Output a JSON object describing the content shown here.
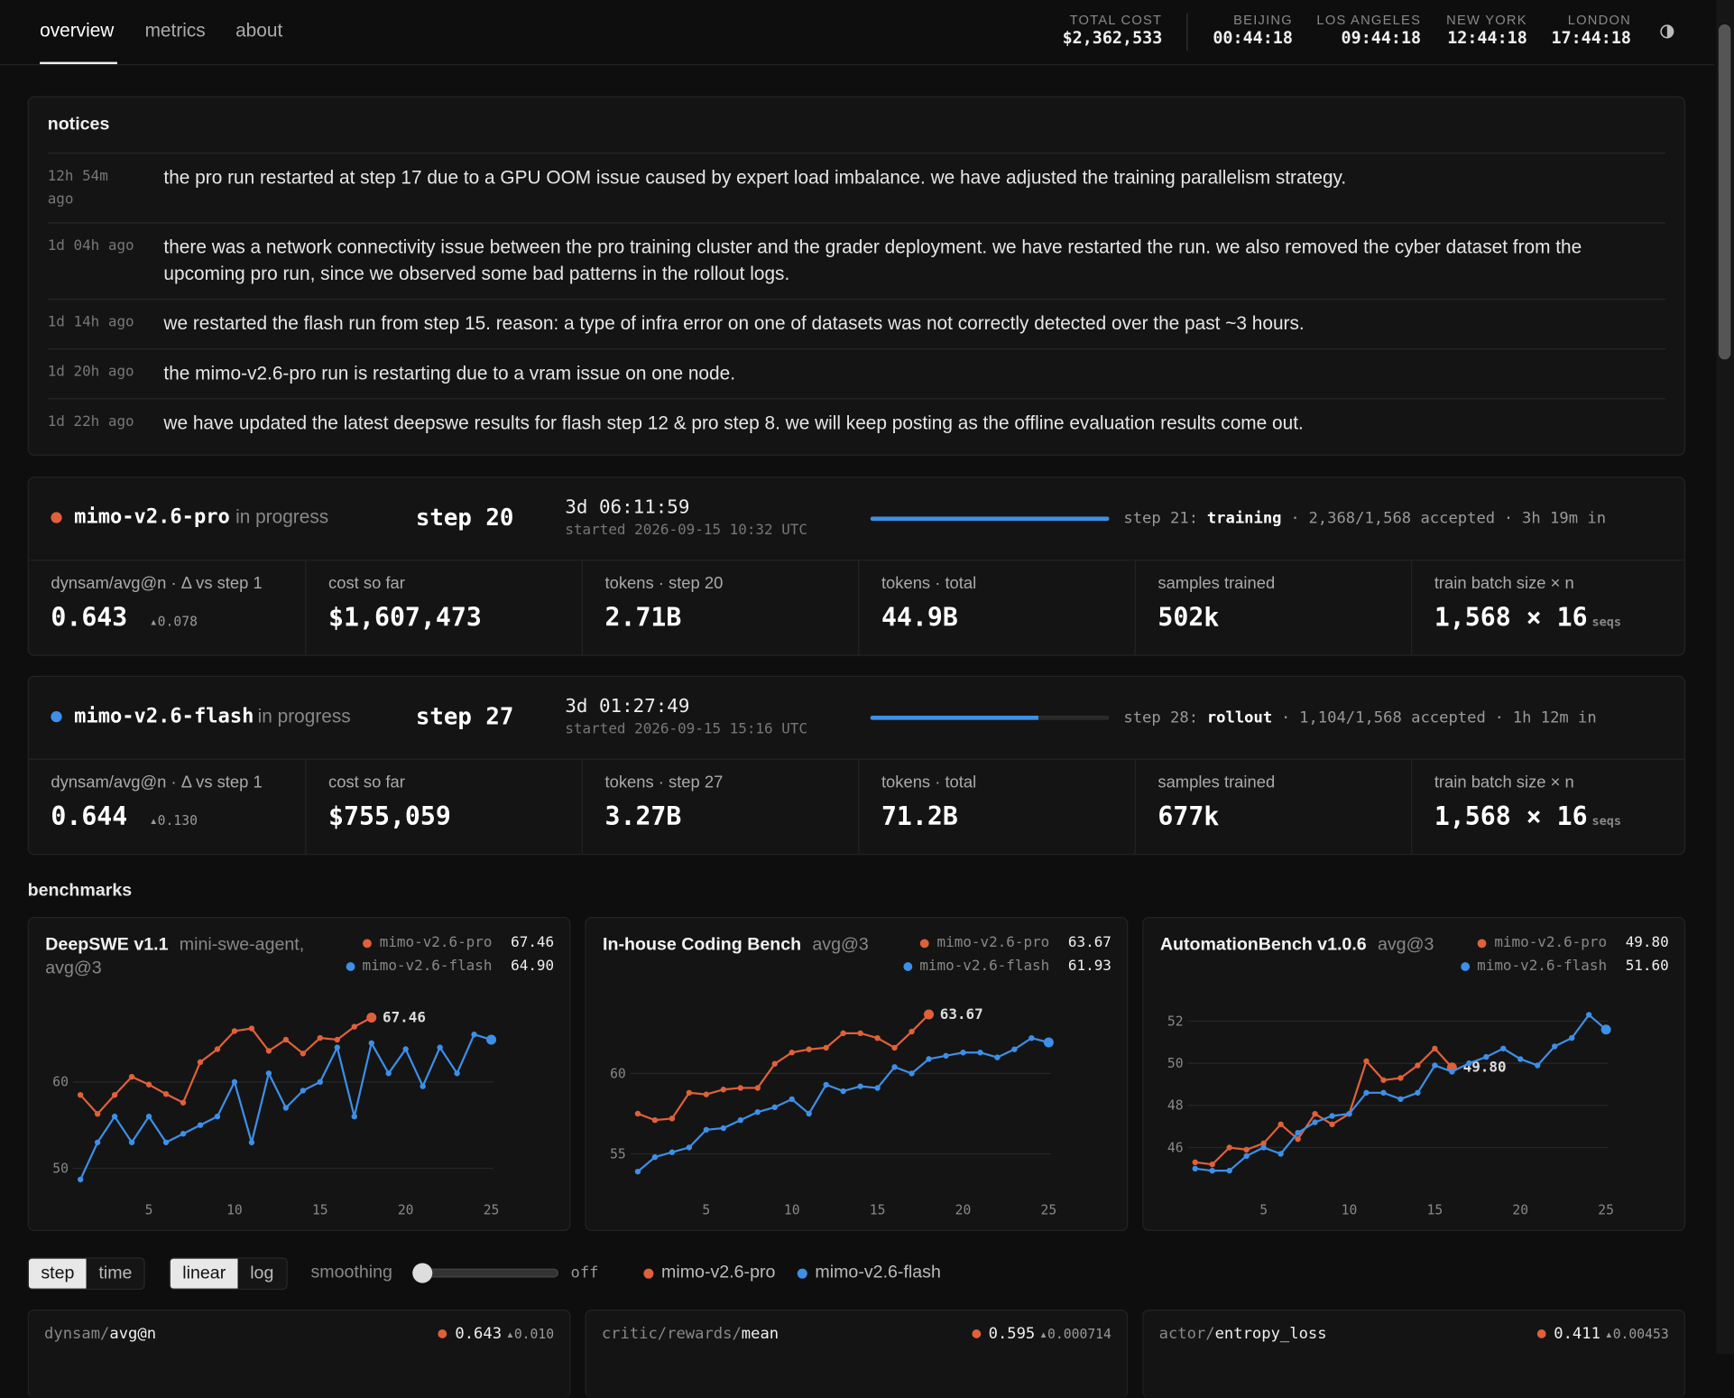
{
  "nav": {
    "tabs": [
      "overview",
      "metrics",
      "about"
    ]
  },
  "header": {
    "stats": [
      {
        "label": "TOTAL COST",
        "value": "$2,362,533"
      },
      {
        "label": "BEIJING",
        "value": "00:44:18"
      },
      {
        "label": "LOS ANGELES",
        "value": "09:44:18"
      },
      {
        "label": "NEW YORK",
        "value": "12:44:18"
      },
      {
        "label": "LONDON",
        "value": "17:44:18"
      }
    ]
  },
  "notices": {
    "title": "notices",
    "items": [
      {
        "time": "12h 54m ago",
        "text": "the pro run restarted at step 17 due to a GPU OOM issue caused by expert load imbalance. we have adjusted the training parallelism strategy."
      },
      {
        "time": "1d 04h ago",
        "text": "there was a network connectivity issue between the pro training cluster and the grader deployment. we have restarted the run. we also removed the cyber dataset from the upcoming pro run, since we observed some bad patterns in the rollout logs."
      },
      {
        "time": "1d 14h ago",
        "text": "we restarted the flash run from step 15. reason: a type of infra error on one of datasets was not correctly detected over the past ~3 hours."
      },
      {
        "time": "1d 20h ago",
        "text": "the mimo-v2.6-pro run is restarting due to a vram issue on one node."
      },
      {
        "time": "1d 22h ago",
        "text": "we have updated the latest deepswe results for flash step 12 & pro step 8. we will keep posting as the offline evaluation results come out."
      }
    ]
  },
  "runs": [
    {
      "name": "mimo-v2.6-pro",
      "color": "#e0603a",
      "status": "in progress",
      "step": "step 20",
      "elapsed": "3d 06:11:59",
      "started": "started 2026-09-15 10:32 UTC",
      "progress": {
        "next": "step 21:",
        "phase": "training",
        "accepted": 2368,
        "target": 1568,
        "accepted_label": "2,368/1,568 accepted",
        "elapsed": "3h 19m in"
      },
      "stats": [
        {
          "label": "dynsam/avg@n · Δ vs step 1",
          "value": "0.643",
          "delta": "▴0.078"
        },
        {
          "label": "cost so far",
          "value": "$1,607,473"
        },
        {
          "label": "tokens · step 20",
          "value": "2.71B"
        },
        {
          "label": "tokens · total",
          "value": "44.9B"
        },
        {
          "label": "samples trained",
          "value": "502k"
        },
        {
          "label": "train batch size × n",
          "value": "1,568 × 16",
          "unit": "seqs"
        }
      ]
    },
    {
      "name": "mimo-v2.6-flash",
      "color": "#3d8fe8",
      "status": "in progress",
      "step": "step 27",
      "elapsed": "3d 01:27:49",
      "started": "started 2026-09-15 15:16 UTC",
      "progress": {
        "next": "step 28:",
        "phase": "rollout",
        "accepted": 1104,
        "target": 1568,
        "accepted_label": "1,104/1,568 accepted",
        "elapsed": "1h 12m in"
      },
      "stats": [
        {
          "label": "dynsam/avg@n · Δ vs step 1",
          "value": "0.644",
          "delta": "▴0.130"
        },
        {
          "label": "cost so far",
          "value": "$755,059"
        },
        {
          "label": "tokens · step 27",
          "value": "3.27B"
        },
        {
          "label": "tokens · total",
          "value": "71.2B"
        },
        {
          "label": "samples trained",
          "value": "677k"
        },
        {
          "label": "train batch size × n",
          "value": "1,568 × 16",
          "unit": "seqs"
        }
      ]
    }
  ],
  "benchmarks": {
    "title": "benchmarks",
    "charts": [
      {
        "type": "line",
        "title": "DeepSWE v1.1",
        "subtitle": "mini-swe-agent, avg@3",
        "xlim": [
          0.5,
          25.5
        ],
        "ylim": [
          48.5,
          69
        ],
        "xticks": [
          5,
          10,
          15,
          20,
          25
        ],
        "yticks": [
          50,
          60
        ],
        "x": [
          1,
          2,
          3,
          4,
          5,
          6,
          7,
          8,
          9,
          10,
          11,
          12,
          13,
          14,
          15,
          16,
          17,
          18,
          19,
          20,
          21,
          22,
          23,
          24,
          25
        ],
        "series": [
          {
            "name": "mimo-v2.6-pro",
            "color": "#e0603a",
            "latest_label": "67.46",
            "values": [
              58.5,
              56.3,
              58.5,
              60.6,
              59.7,
              58.6,
              57.6,
              62.3,
              63.8,
              65.9,
              66.2,
              63.6,
              64.9,
              63.3,
              65.1,
              64.9,
              66.4,
              67.46,
              null,
              null,
              null,
              null,
              null,
              null,
              null
            ]
          },
          {
            "name": "mimo-v2.6-flash",
            "color": "#3d8fe8",
            "latest_label": "64.90",
            "values": [
              48.7,
              53,
              56,
              53,
              56,
              53,
              54,
              55,
              56,
              60,
              53,
              61,
              57,
              59,
              60,
              64,
              56,
              64.5,
              61,
              63.8,
              59.5,
              64,
              61,
              65.5,
              64.9
            ]
          }
        ]
      },
      {
        "type": "line",
        "title": "In-house Coding Bench",
        "subtitle": "avg@3",
        "xlim": [
          0.5,
          25.5
        ],
        "ylim": [
          53.3,
          64.3
        ],
        "xticks": [
          5,
          10,
          15,
          20,
          25
        ],
        "yticks": [
          55,
          60
        ],
        "x": [
          1,
          2,
          3,
          4,
          5,
          6,
          7,
          8,
          9,
          10,
          11,
          12,
          13,
          14,
          15,
          16,
          17,
          18,
          19,
          20,
          21,
          22,
          23,
          24,
          25
        ],
        "series": [
          {
            "name": "mimo-v2.6-pro",
            "color": "#e0603a",
            "latest_label": "63.67",
            "values": [
              57.5,
              57.1,
              57.2,
              58.8,
              58.7,
              59,
              59.1,
              59.1,
              60.6,
              61.3,
              61.5,
              61.6,
              62.5,
              62.5,
              62.2,
              61.6,
              62.6,
              63.67,
              null,
              null,
              null,
              null,
              null,
              null,
              null
            ]
          },
          {
            "name": "mimo-v2.6-flash",
            "color": "#3d8fe8",
            "latest_label": "61.93",
            "values": [
              53.9,
              54.8,
              55.1,
              55.4,
              56.5,
              56.6,
              57.1,
              57.6,
              57.9,
              58.4,
              57.5,
              59.3,
              58.9,
              59.2,
              59.1,
              60.4,
              60,
              60.9,
              61.1,
              61.3,
              61.3,
              61,
              61.5,
              62.2,
              61.93
            ]
          }
        ]
      },
      {
        "type": "line",
        "title": "AutomationBench v1.0.6",
        "subtitle": "avg@3",
        "xlim": [
          0.5,
          25.5
        ],
        "ylim": [
          44.4,
          52.8
        ],
        "xticks": [
          5,
          10,
          15,
          20,
          25
        ],
        "yticks": [
          46,
          48,
          50,
          52
        ],
        "x": [
          1,
          2,
          3,
          4,
          5,
          6,
          7,
          8,
          9,
          10,
          11,
          12,
          13,
          14,
          15,
          16,
          17,
          18,
          19,
          20,
          21,
          22,
          23,
          24,
          25
        ],
        "series": [
          {
            "name": "mimo-v2.6-pro",
            "color": "#e0603a",
            "latest_label": "49.80",
            "values": [
              45.3,
              45.2,
              46,
              45.9,
              46.2,
              47.1,
              46.4,
              47.6,
              47.1,
              47.6,
              50.1,
              49.2,
              49.3,
              49.9,
              50.7,
              49.8,
              null,
              null,
              null,
              null,
              null,
              null,
              null,
              null,
              null
            ]
          },
          {
            "name": "mimo-v2.6-flash",
            "color": "#3d8fe8",
            "latest_label": "51.60",
            "values": [
              45,
              44.9,
              44.9,
              45.6,
              46,
              45.7,
              46.7,
              47.2,
              47.5,
              47.6,
              48.6,
              48.6,
              48.3,
              48.6,
              49.9,
              49.6,
              50,
              50.3,
              50.7,
              50.2,
              49.9,
              50.8,
              51.2,
              52.3,
              51.6
            ]
          }
        ]
      }
    ]
  },
  "controls": {
    "xaxis": [
      "step",
      "time"
    ],
    "scale": [
      "linear",
      "log"
    ],
    "smoothing": "smoothing",
    "smoothing_value": "off",
    "legend": [
      {
        "name": "mimo-v2.6-pro",
        "color": "#e0603a"
      },
      {
        "name": "mimo-v2.6-flash",
        "color": "#3d8fe8"
      }
    ]
  },
  "metric_cards": [
    {
      "prefix": "dynsam/",
      "name": "avg@n",
      "value": "0.643",
      "delta": "▴0.010",
      "color": "#e0603a"
    },
    {
      "prefix": "critic/rewards/",
      "name": "mean",
      "value": "0.595",
      "delta": "▴0.000714",
      "color": "#e0603a"
    },
    {
      "prefix": "actor/",
      "name": "entropy_loss",
      "value": "0.411",
      "delta": "▴0.00453",
      "color": "#e0603a"
    }
  ]
}
